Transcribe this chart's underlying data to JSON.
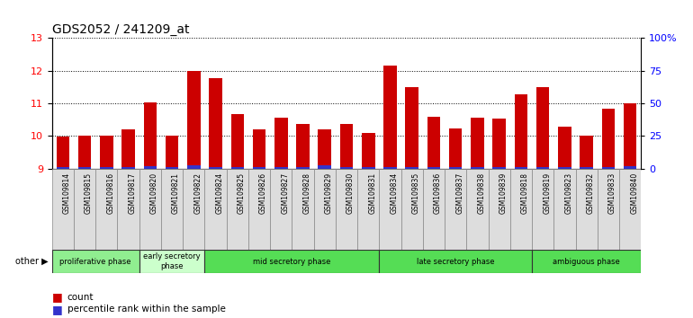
{
  "title": "GDS2052 / 241209_at",
  "samples": [
    "GSM109814",
    "GSM109815",
    "GSM109816",
    "GSM109817",
    "GSM109820",
    "GSM109821",
    "GSM109822",
    "GSM109824",
    "GSM109825",
    "GSM109826",
    "GSM109827",
    "GSM109828",
    "GSM109829",
    "GSM109830",
    "GSM109831",
    "GSM109834",
    "GSM109835",
    "GSM109836",
    "GSM109837",
    "GSM109838",
    "GSM109839",
    "GSM109818",
    "GSM109819",
    "GSM109823",
    "GSM109832",
    "GSM109833",
    "GSM109840"
  ],
  "count_values": [
    9.98,
    10.0,
    10.01,
    10.21,
    11.02,
    10.02,
    12.0,
    11.78,
    10.68,
    10.2,
    10.55,
    10.38,
    10.2,
    10.38,
    10.1,
    12.15,
    11.49,
    10.58,
    10.22,
    10.57,
    10.54,
    11.28,
    11.5,
    10.28,
    10.0,
    10.83,
    11.0
  ],
  "percentile_values": [
    0.05,
    0.05,
    0.05,
    0.05,
    0.07,
    0.05,
    0.1,
    0.05,
    0.05,
    0.05,
    0.05,
    0.05,
    0.1,
    0.05,
    0.05,
    0.05,
    0.05,
    0.05,
    0.05,
    0.05,
    0.05,
    0.05,
    0.05,
    0.05,
    0.05,
    0.05,
    0.07
  ],
  "phase_groups": [
    {
      "label": "proliferative phase",
      "start": 0,
      "end": 4,
      "color": "#90EE90",
      "light": false
    },
    {
      "label": "early secretory\nphase",
      "start": 4,
      "end": 7,
      "color": "#ccffcc",
      "light": true
    },
    {
      "label": "mid secretory phase",
      "start": 7,
      "end": 15,
      "color": "#55DD55",
      "light": false
    },
    {
      "label": "late secretory phase",
      "start": 15,
      "end": 22,
      "color": "#55DD55",
      "light": false
    },
    {
      "label": "ambiguous phase",
      "start": 22,
      "end": 27,
      "color": "#55DD55",
      "light": false
    }
  ],
  "ylim_low": 9,
  "ylim_high": 13,
  "yticks": [
    9,
    10,
    11,
    12,
    13
  ],
  "right_yticks": [
    0,
    25,
    50,
    75,
    100
  ],
  "right_ylabels": [
    "0",
    "25",
    "50",
    "75",
    "100%"
  ],
  "bar_color_red": "#CC0000",
  "bar_color_blue": "#3333CC",
  "tick_bg": "#dddddd",
  "fig_bg": "#f0f0f0"
}
